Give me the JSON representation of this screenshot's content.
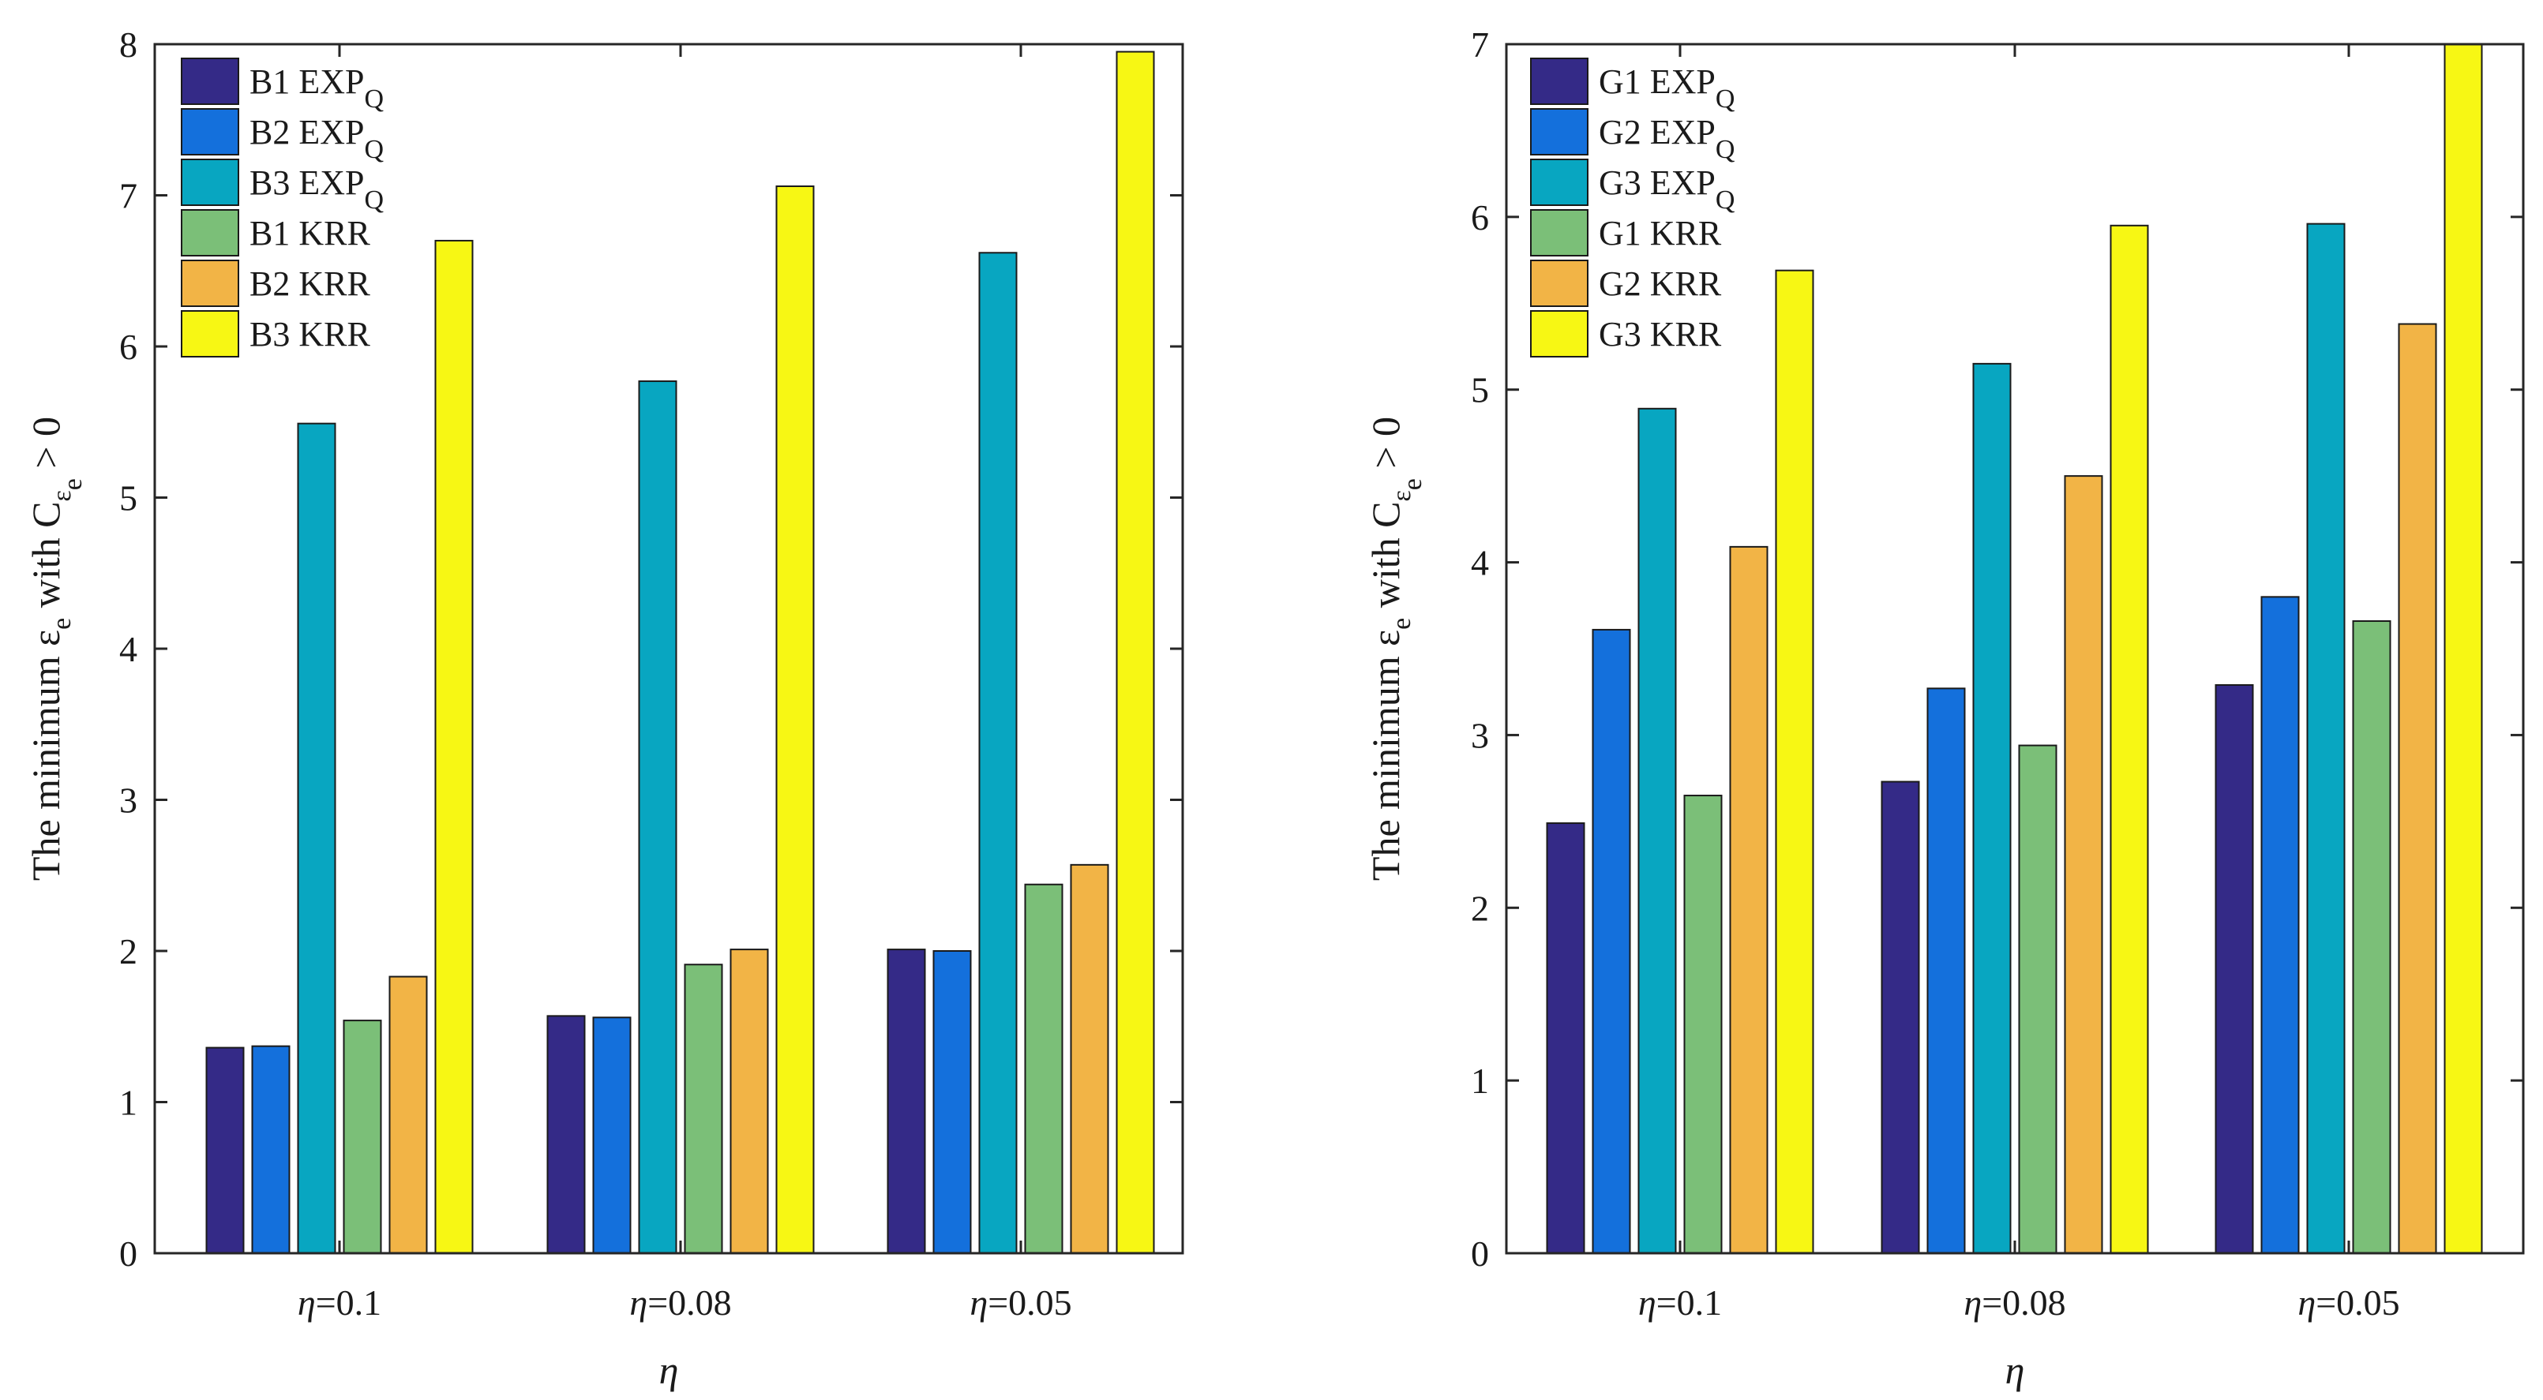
{
  "colors": {
    "B1": "#342a87",
    "B2": "#1470dc",
    "B3": "#08a6c1",
    "KRR1": "#7bbf78",
    "KRR2": "#f2b446",
    "KRR3": "#f7f714",
    "axis": "#262626",
    "bar_edge": "#1a1a1a"
  },
  "chart_data": [
    {
      "type": "bar",
      "categories": [
        "η=0.1",
        "η=0.08",
        "η=0.05"
      ],
      "category_parts": [
        {
          "sym": "η",
          "val": "=0.1"
        },
        {
          "sym": "η",
          "val": "=0.08"
        },
        {
          "sym": "η",
          "val": "=0.05"
        }
      ],
      "xlabel": "η",
      "ylabel": {
        "main": "The minimum ε",
        "sub1": "e",
        "mid": " with C",
        "sub2": "ε",
        "sub3": "e",
        "tail": " > 0"
      },
      "ylim": [
        0,
        8
      ],
      "yticks": [
        "0",
        "1",
        "2",
        "3",
        "4",
        "5",
        "6",
        "7",
        "8"
      ],
      "series": [
        {
          "name": "B1 EXP",
          "sub": "Q",
          "color_key": "B1",
          "values": [
            1.36,
            1.57,
            2.01
          ]
        },
        {
          "name": "B2 EXP",
          "sub": "Q",
          "color_key": "B2",
          "values": [
            1.37,
            1.56,
            2.0
          ]
        },
        {
          "name": "B3 EXP",
          "sub": "Q",
          "color_key": "B3",
          "values": [
            5.49,
            5.77,
            6.62
          ]
        },
        {
          "name": "B1 KRR",
          "sub": "",
          "color_key": "KRR1",
          "values": [
            1.54,
            1.91,
            2.44
          ]
        },
        {
          "name": "B2 KRR",
          "sub": "",
          "color_key": "KRR2",
          "values": [
            1.83,
            2.01,
            2.57
          ]
        },
        {
          "name": "B3 KRR",
          "sub": "",
          "color_key": "KRR3",
          "values": [
            6.7,
            7.06,
            7.95
          ]
        }
      ]
    },
    {
      "type": "bar",
      "categories": [
        "η=0.1",
        "η=0.08",
        "η=0.05"
      ],
      "category_parts": [
        {
          "sym": "η",
          "val": "=0.1"
        },
        {
          "sym": "η",
          "val": "=0.08"
        },
        {
          "sym": "η",
          "val": "=0.05"
        }
      ],
      "xlabel": "η",
      "ylabel": {
        "main": "The minimum ε",
        "sub1": "e",
        "mid": " with C",
        "sub2": "ε",
        "sub3": "e",
        "tail": " > 0"
      },
      "ylim": [
        0,
        7
      ],
      "yticks": [
        "0",
        "1",
        "2",
        "3",
        "4",
        "5",
        "6",
        "7"
      ],
      "series": [
        {
          "name": "G1 EXP",
          "sub": "Q",
          "color_key": "B1",
          "values": [
            2.49,
            2.73,
            3.29
          ]
        },
        {
          "name": "G2 EXP",
          "sub": "Q",
          "color_key": "B2",
          "values": [
            3.61,
            3.27,
            3.8
          ]
        },
        {
          "name": "G3 EXP",
          "sub": "Q",
          "color_key": "B3",
          "values": [
            4.89,
            5.15,
            5.96
          ]
        },
        {
          "name": "G1 KRR",
          "sub": "",
          "color_key": "KRR1",
          "values": [
            2.65,
            2.94,
            3.66
          ]
        },
        {
          "name": "G2 KRR",
          "sub": "",
          "color_key": "KRR2",
          "values": [
            4.09,
            4.5,
            5.38
          ]
        },
        {
          "name": "G3 KRR",
          "sub": "",
          "color_key": "KRR3",
          "values": [
            5.69,
            5.95,
            7.0
          ]
        }
      ]
    }
  ]
}
